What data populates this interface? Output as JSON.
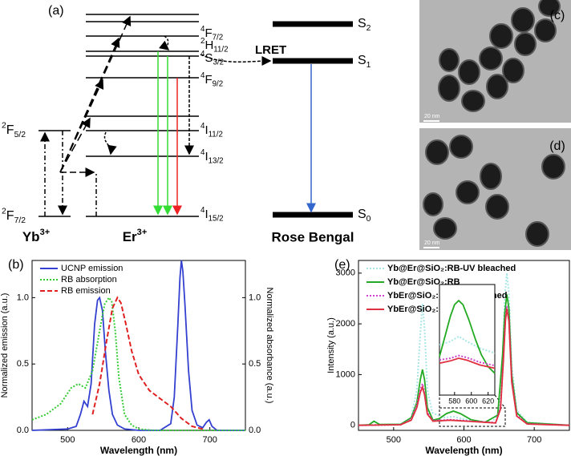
{
  "diagram": {
    "label": "(a)",
    "yb_levels": [
      {
        "sup": "2",
        "main": "F",
        "sub": "5/2"
      },
      {
        "sup": "2",
        "main": "F",
        "sub": "7/2"
      }
    ],
    "er_levels": [
      {
        "sup": "4",
        "main": "F",
        "sub": "7/2"
      },
      {
        "sup": "2",
        "main": "H",
        "sub": "11/2"
      },
      {
        "sup": "4",
        "main": "S",
        "sub": "3/2"
      },
      {
        "sup": "4",
        "main": "F",
        "sub": "9/2"
      },
      {
        "sup": "4",
        "main": "I",
        "sub": "11/2"
      },
      {
        "sup": "4",
        "main": "I",
        "sub": "13/2"
      },
      {
        "sup": "4",
        "main": "I",
        "sub": "15/2"
      }
    ],
    "ions": [
      {
        "main": "Yb",
        "sup": "3+"
      },
      {
        "main": "Er",
        "sup": "3+"
      }
    ],
    "rb_levels": [
      {
        "main": "S",
        "sub": "2"
      },
      {
        "main": "S",
        "sub": "1"
      },
      {
        "main": "S",
        "sub": "0"
      }
    ],
    "lret": "LRET",
    "rb_name": "Rose Bengal"
  },
  "images": [
    {
      "label": "(c)",
      "scale": "20 nm"
    },
    {
      "label": "(d)",
      "scale": "20 nm"
    }
  ],
  "chart_data": [
    {
      "type": "line",
      "label": "(b)",
      "x_label": "Wavelength (nm)",
      "y_label": "Normalized emission (a.u.)",
      "y2_label": "Normalized absorbance (a.u.)",
      "xlim": [
        450,
        750
      ],
      "xticks": [
        500,
        600,
        700
      ],
      "ylim": [
        0,
        1.28
      ],
      "yticks": [
        {
          "value": 0,
          "label": "0.0"
        },
        0.5,
        {
          "value": 1,
          "label": "1.0"
        }
      ],
      "y2lim": [
        0,
        1.28
      ],
      "y2ticks": [
        {
          "value": 0,
          "label": "0.0"
        },
        0.5,
        {
          "value": 1,
          "label": "1.0"
        }
      ],
      "legend": "upper left",
      "series": [
        {
          "name": "UCNP emission",
          "color": "#3340d0",
          "style": "solid",
          "x": [
            450,
            500,
            512,
            518,
            523,
            528,
            533,
            538,
            542,
            545,
            549,
            553,
            558,
            563,
            570,
            580,
            600,
            630,
            645,
            650,
            655,
            658,
            660,
            662,
            665,
            670,
            675,
            682,
            690,
            695,
            699,
            703,
            710,
            750
          ],
          "values": [
            0,
            0.01,
            0.03,
            0.12,
            0.22,
            0.18,
            0.35,
            0.8,
            0.98,
            1.0,
            0.9,
            0.6,
            0.3,
            0.12,
            0.04,
            0.01,
            0,
            0,
            0.05,
            0.25,
            0.8,
            1.15,
            1.28,
            1.2,
            0.95,
            0.45,
            0.15,
            0.04,
            0.02,
            0.06,
            0.08,
            0.03,
            0,
            0
          ]
        },
        {
          "name": "RB absorption",
          "color": "#33cc33",
          "style": "dotted",
          "axis": "y2",
          "x": [
            450,
            470,
            490,
            505,
            515,
            525,
            535,
            545,
            552,
            558,
            562,
            567,
            572,
            580,
            590,
            600,
            620,
            750
          ],
          "values": [
            0.08,
            0.12,
            0.2,
            0.32,
            0.35,
            0.32,
            0.45,
            0.75,
            0.95,
            1.0,
            0.97,
            0.75,
            0.4,
            0.12,
            0.04,
            0.01,
            0,
            0
          ]
        },
        {
          "name": "RB emission",
          "color": "#e02020",
          "style": "dashed",
          "x": [
            535,
            545,
            555,
            563,
            570,
            575,
            582,
            590,
            600,
            615,
            630,
            645,
            660,
            675,
            690
          ],
          "values": [
            0.12,
            0.35,
            0.68,
            0.92,
            1.0,
            0.96,
            0.8,
            0.6,
            0.42,
            0.3,
            0.24,
            0.18,
            0.09,
            0.03,
            0.01
          ]
        }
      ]
    },
    {
      "type": "line",
      "label": "(e)",
      "x_label": "Wavelength (nm)",
      "y_label": "Intensity (a.u.)",
      "xlim": [
        450,
        750
      ],
      "xticks": [
        500,
        600,
        700
      ],
      "ylim": [
        -100,
        3250
      ],
      "yticks": [
        0,
        1000,
        2000,
        3000
      ],
      "legend": "upper left",
      "series": [
        {
          "name": "Yb@Er@SiO₂:RB-UV bleached",
          "color": "#a8e6e6",
          "style": "dotted",
          "x": [
            450,
            510,
            525,
            533,
            538,
            541,
            544,
            548,
            555,
            570,
            585,
            610,
            640,
            650,
            655,
            658,
            661,
            664,
            668,
            675,
            690,
            750
          ],
          "values": [
            0,
            20,
            150,
            700,
            1800,
            2400,
            1900,
            700,
            250,
            150,
            170,
            90,
            60,
            250,
            1300,
            2500,
            3000,
            2600,
            1200,
            300,
            60,
            0
          ]
        },
        {
          "name": "Yb@Er@SiO₂:RB",
          "color": "#22aa22",
          "style": "solid",
          "x": [
            450,
            465,
            472,
            480,
            510,
            525,
            533,
            538,
            541,
            544,
            548,
            556,
            565,
            575,
            585,
            595,
            610,
            630,
            648,
            655,
            658,
            661,
            664,
            668,
            675,
            690,
            750
          ],
          "values": [
            0,
            10,
            80,
            15,
            20,
            150,
            450,
            900,
            1100,
            900,
            350,
            100,
            130,
            230,
            280,
            230,
            110,
            60,
            200,
            1400,
            2200,
            2580,
            2300,
            1000,
            250,
            50,
            0
          ]
        },
        {
          "name": "YbEr@SiO₂:RB-UV bleached",
          "color": "#cc44cc",
          "style": "dotted",
          "x": [
            450,
            510,
            525,
            533,
            538,
            541,
            544,
            548,
            556,
            580,
            610,
            645,
            652,
            656,
            659,
            661,
            664,
            668,
            675,
            690,
            750
          ],
          "values": [
            0,
            10,
            120,
            400,
            700,
            820,
            650,
            250,
            90,
            110,
            80,
            50,
            350,
            1300,
            2100,
            2350,
            2100,
            900,
            200,
            30,
            0
          ]
        },
        {
          "name": "YbEr@SiO₂:RB",
          "color": "#e03040",
          "style": "solid",
          "x": [
            450,
            510,
            525,
            533,
            538,
            541,
            544,
            548,
            556,
            580,
            610,
            645,
            652,
            656,
            659,
            661,
            664,
            668,
            675,
            690,
            750
          ],
          "values": [
            0,
            10,
            100,
            350,
            650,
            750,
            600,
            220,
            80,
            100,
            75,
            45,
            320,
            1250,
            2050,
            2300,
            2050,
            850,
            180,
            25,
            0
          ]
        }
      ]
    },
    {
      "type": "line",
      "xlim": [
        562,
        628
      ],
      "xticks": [
        580,
        600,
        620
      ],
      "ylim": [
        0,
        330
      ],
      "series": [
        {
          "color": "#a8e6e6",
          "style": "dotted",
          "x": [
            562,
            575,
            585,
            595,
            610,
            628
          ],
          "values": [
            150,
            160,
            175,
            160,
            140,
            125
          ]
        },
        {
          "color": "#22aa22",
          "style": "solid",
          "x": [
            562,
            568,
            575,
            580,
            585,
            590,
            597,
            605,
            612,
            620,
            628
          ],
          "values": [
            115,
            170,
            235,
            270,
            282,
            270,
            225,
            165,
            120,
            85,
            65
          ]
        },
        {
          "color": "#cc44cc",
          "style": "dotted",
          "x": [
            562,
            575,
            585,
            595,
            610,
            628
          ],
          "values": [
            105,
            110,
            118,
            112,
            98,
            88
          ]
        },
        {
          "color": "#e03040",
          "style": "solid",
          "x": [
            562,
            575,
            585,
            595,
            610,
            628
          ],
          "values": [
            95,
            102,
            110,
            104,
            90,
            80
          ]
        }
      ]
    }
  ]
}
